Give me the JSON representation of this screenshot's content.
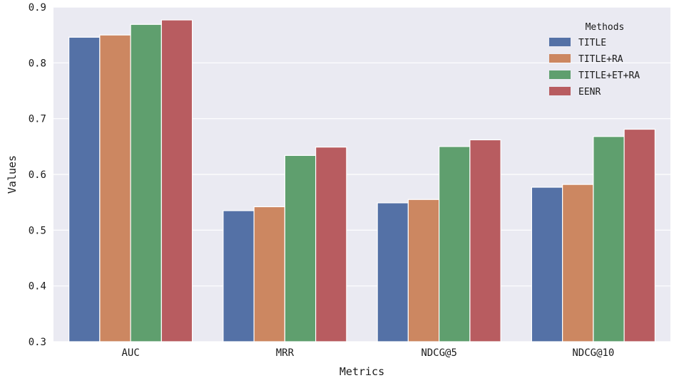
{
  "chart_data": {
    "type": "bar",
    "title": "",
    "xlabel": "Metrics",
    "ylabel": "Values",
    "categories": [
      "AUC",
      "MRR",
      "NDCG@5",
      "NDCG@10"
    ],
    "ylim": [
      0.3,
      0.9
    ],
    "yticks": [
      "0.3",
      "0.4",
      "0.5",
      "0.6",
      "0.7",
      "0.8",
      "0.9"
    ],
    "grid": true,
    "legend": {
      "title": "Methods",
      "position": "top-right"
    },
    "series": [
      {
        "name": "TITLE",
        "color": "#5471a6",
        "values": [
          0.846,
          0.535,
          0.549,
          0.577
        ]
      },
      {
        "name": "TITLE+RA",
        "color": "#cc8761",
        "values": [
          0.85,
          0.542,
          0.555,
          0.582
        ]
      },
      {
        "name": "TITLE+ET+RA",
        "color": "#5f9f6e",
        "values": [
          0.869,
          0.634,
          0.65,
          0.668
        ]
      },
      {
        "name": "EENR",
        "color": "#b85c60",
        "values": [
          0.877,
          0.649,
          0.662,
          0.681
        ]
      }
    ],
    "background_color": "#eaeaf2",
    "grid_color": "#ffffff"
  }
}
